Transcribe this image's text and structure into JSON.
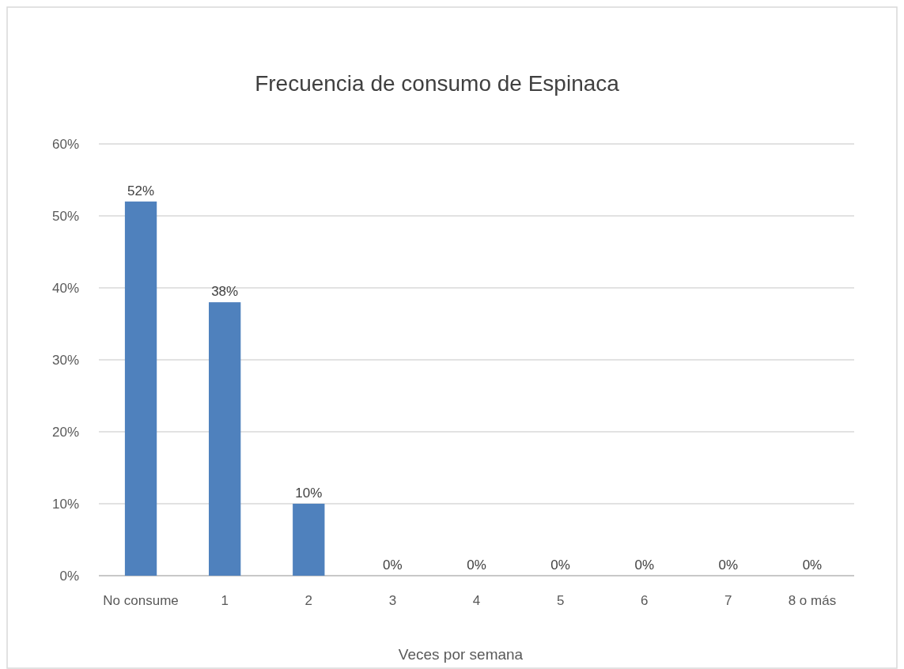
{
  "chart_data": {
    "type": "bar",
    "title": "Frecuencia de consumo de Espinaca",
    "xlabel": "Veces por semana",
    "categories": [
      "No consume",
      "1",
      "2",
      "3",
      "4",
      "5",
      "6",
      "7",
      "8 o más"
    ],
    "values": [
      52,
      38,
      10,
      0,
      0,
      0,
      0,
      0,
      0
    ],
    "value_labels": [
      "52%",
      "38%",
      "10%",
      "0%",
      "0%",
      "0%",
      "0%",
      "0%",
      "0%"
    ],
    "color": "#4f81bd",
    "ylim": [
      0,
      60
    ],
    "yticks": [
      {
        "value": 0,
        "label": "0%"
      },
      {
        "value": 10,
        "label": "10%"
      },
      {
        "value": 20,
        "label": "20%"
      },
      {
        "value": 30,
        "label": "30%"
      },
      {
        "value": 40,
        "label": "40%"
      },
      {
        "value": 50,
        "label": "50%"
      },
      {
        "value": 60,
        "label": "60%"
      }
    ],
    "grid": "y"
  }
}
